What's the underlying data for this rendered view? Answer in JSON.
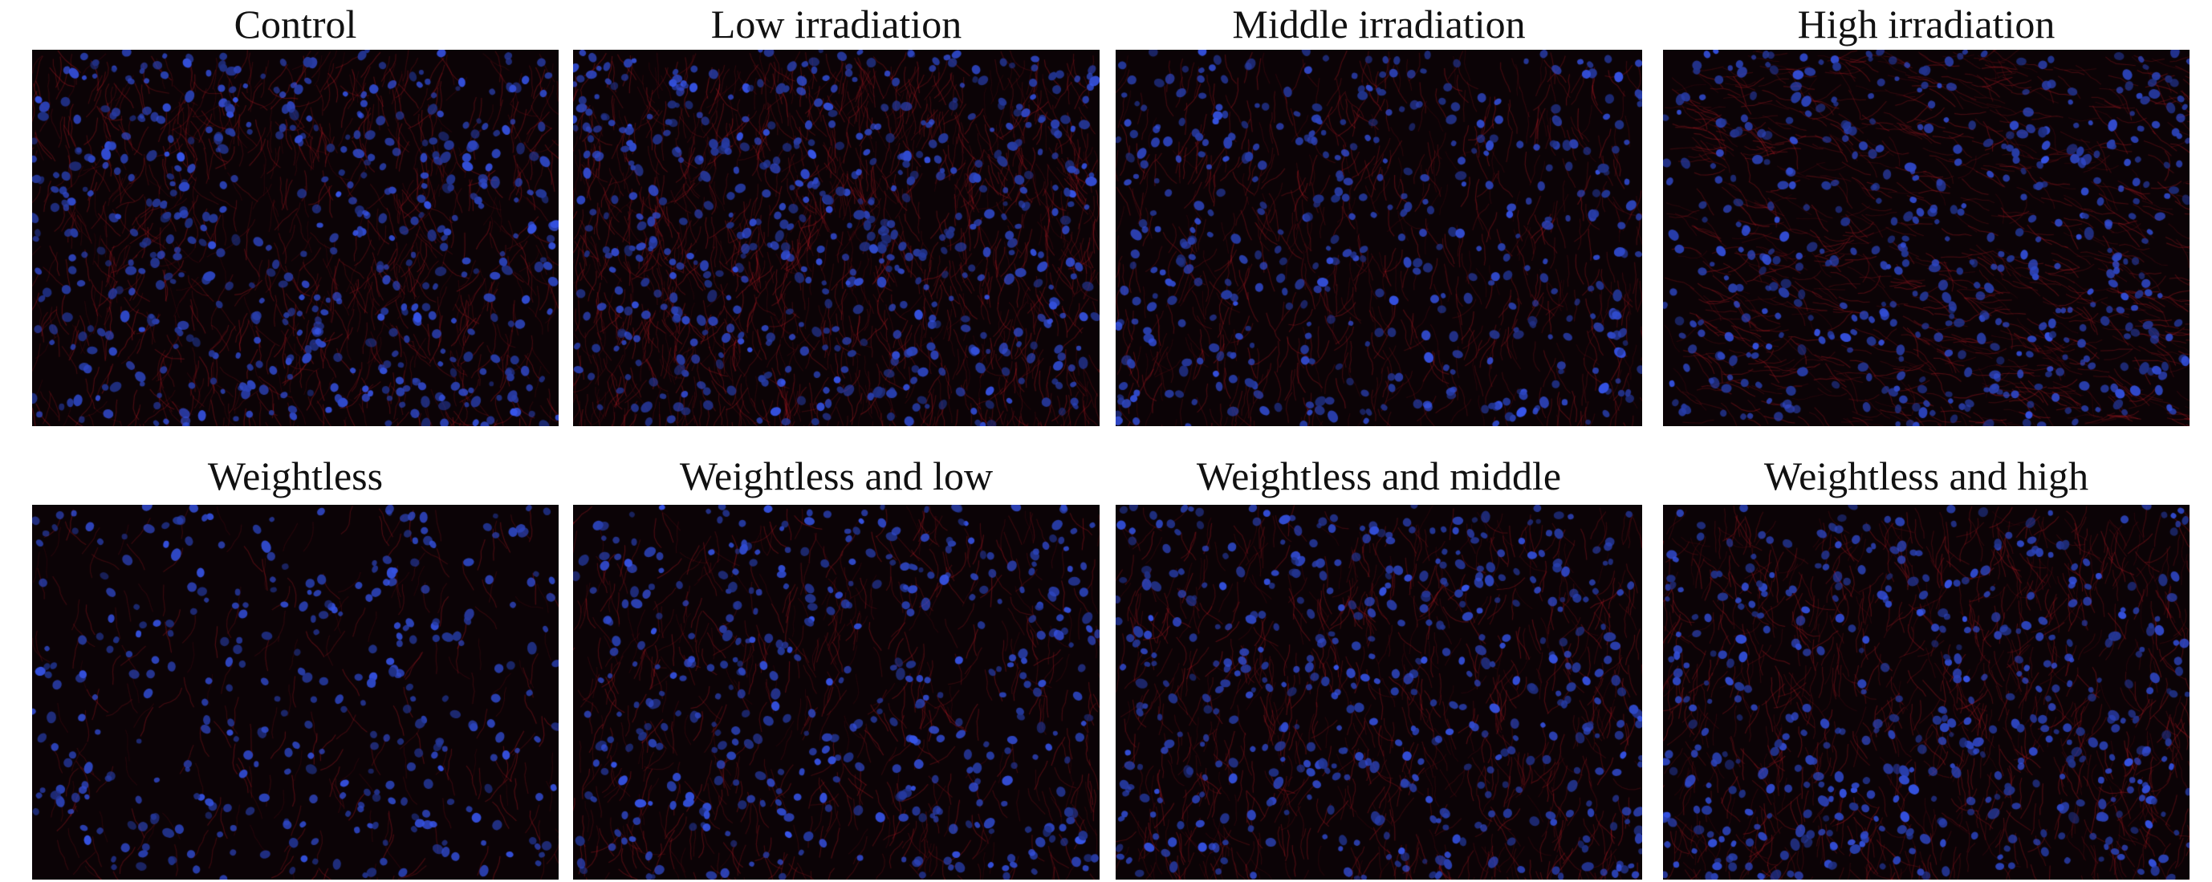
{
  "panels": [
    {
      "label": "Control"
    },
    {
      "label": "Low irradiation"
    },
    {
      "label": "Middle irradiation"
    },
    {
      "label": "High irradiation"
    },
    {
      "label": "Weightless"
    },
    {
      "label": "Weightless and low"
    },
    {
      "label": "Weightless and middle"
    },
    {
      "label": "Weightless and high"
    }
  ],
  "colors": {
    "nuclei": "#3a55e0",
    "fibers": "#a01818",
    "background": "#0b0306"
  }
}
